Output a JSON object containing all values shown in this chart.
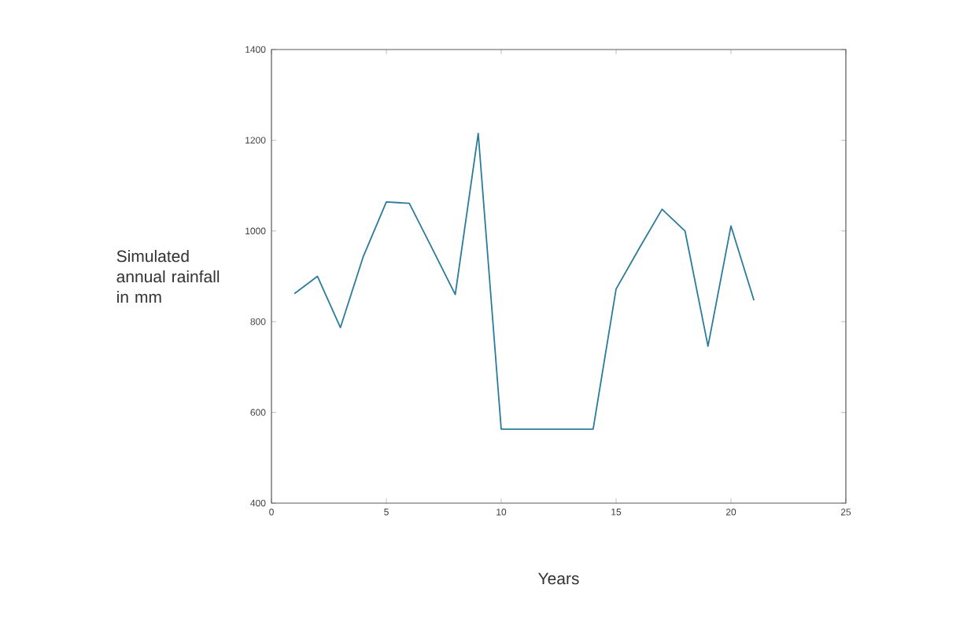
{
  "chart_data": {
    "type": "line",
    "xlabel": "Years",
    "ylabel": "Simulated annual rainfall in mm",
    "x": [
      1,
      2,
      3,
      4,
      5,
      6,
      7,
      8,
      9,
      10,
      11,
      12,
      13,
      14,
      15,
      16,
      17,
      18,
      19,
      20,
      21
    ],
    "values": [
      862,
      900,
      787,
      944,
      1064,
      1061,
      961,
      860,
      1215,
      563,
      563,
      563,
      563,
      563,
      872,
      961,
      1048,
      1000,
      746,
      1011,
      847
    ],
    "color": "#2b7b9b",
    "xlim": [
      0,
      25
    ],
    "ylim": [
      400,
      1400
    ],
    "xticks": [
      0,
      5,
      10,
      15,
      20,
      25
    ],
    "yticks": [
      400,
      600,
      800,
      1000,
      1200,
      1400
    ],
    "grid": false,
    "marker": "none",
    "line_style": "solid"
  }
}
